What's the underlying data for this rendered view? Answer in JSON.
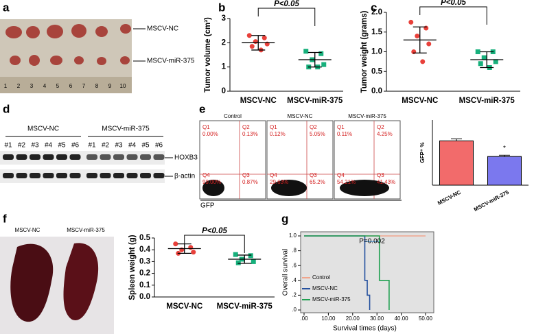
{
  "panel_labels": [
    "a",
    "b",
    "c",
    "d",
    "e",
    "f",
    "g"
  ],
  "photo_a": {
    "labels": [
      "MSCV-NC",
      "MSCV-miR-375"
    ],
    "ruler": [
      "1",
      "2",
      "3",
      "4",
      "5",
      "6",
      "7",
      "8",
      "9",
      "10"
    ]
  },
  "western_blot": {
    "groups": [
      "MSCV-NC",
      "MSCV-miR-375"
    ],
    "lanes": [
      "#1",
      "#2",
      "#3",
      "#4",
      "#5",
      "#6",
      "#1",
      "#2",
      "#3",
      "#4",
      "#5",
      "#6"
    ],
    "bands": [
      "HOXB3",
      "β-actin"
    ]
  },
  "flow": {
    "x_label": "GFP",
    "plots": [
      {
        "title": "Control",
        "quadrants": [
          [
            "Q1",
            "0.00%"
          ],
          [
            "Q2",
            "0.13%"
          ],
          [
            "Q4",
            "99.00%"
          ],
          [
            "Q3",
            "0.87%"
          ]
        ]
      },
      {
        "title": "MSCV-NC",
        "quadrants": [
          [
            "Q1",
            "0.12%"
          ],
          [
            "Q2",
            "5.05%"
          ],
          [
            "Q4",
            "29.63%"
          ],
          [
            "Q3",
            "65.2%"
          ]
        ]
      },
      {
        "title": "MSCV-miR-375",
        "quadrants": [
          [
            "Q1",
            "0.11%"
          ],
          [
            "Q2",
            "4.25%"
          ],
          [
            "Q4",
            "54.21%"
          ],
          [
            "Q3",
            "41.43%"
          ]
        ]
      }
    ]
  },
  "photo_f": {
    "labels": [
      "MSCV-NC",
      "MSCV-miR-375"
    ]
  },
  "chart_data": [
    {
      "type": "dot",
      "y_label": "Tumor volume (cm³)",
      "annotation": "P<0.05",
      "categories": [
        "MSCV-NC",
        "MSCV-miR-375"
      ],
      "colors": [
        "#e8403a",
        "#17b07c"
      ],
      "values": [
        [
          2.3,
          2.2,
          2.05,
          1.95,
          1.85,
          1.7
        ],
        [
          1.65,
          1.55,
          1.3,
          1.1,
          1.0,
          1.0
        ]
      ],
      "mean": [
        2.0,
        1.3
      ],
      "sd": [
        0.3,
        0.3
      ],
      "ylim": [
        0,
        3
      ],
      "yticks": [
        0,
        1,
        2,
        3
      ]
    },
    {
      "type": "dot",
      "y_label": "Tumor weight (grams)",
      "annotation": "P<0.05",
      "categories": [
        "MSCV-NC",
        "MSCV-miR-375"
      ],
      "colors": [
        "#e8403a",
        "#17b07c"
      ],
      "values": [
        [
          1.75,
          1.6,
          1.4,
          1.2,
          1.0,
          0.75
        ],
        [
          1.0,
          1.0,
          0.85,
          0.75,
          0.7,
          0.6
        ]
      ],
      "mean": [
        1.3,
        0.8
      ],
      "sd": [
        0.33,
        0.2
      ],
      "ylim": [
        0,
        2
      ],
      "yticks": [
        {
          "value": 0,
          "label": "0.0"
        },
        0.5,
        {
          "value": 1,
          "label": "1.0"
        },
        1.5,
        {
          "value": 2,
          "label": "2.0"
        }
      ]
    },
    {
      "type": "bar",
      "y_label": "GFP⁺ %",
      "annotation": "*",
      "categories": [
        "MSCV-NC",
        "MSCV-miR-375"
      ],
      "colors": [
        "#f26b6b",
        "#7b78ee"
      ],
      "values": [
        68,
        44
      ],
      "errors": [
        3,
        2
      ],
      "ylim": [
        0,
        100
      ]
    },
    {
      "type": "dot",
      "y_label": "Spleen weight (g)",
      "annotation": "P<0.05",
      "categories": [
        "MSCV-NC",
        "MSCV-miR-375"
      ],
      "colors": [
        "#e8403a",
        "#17b07c"
      ],
      "values": [
        [
          0.45,
          0.42,
          0.4,
          0.38,
          0.37
        ],
        [
          0.36,
          0.35,
          0.32,
          0.3,
          0.29
        ]
      ],
      "mean": [
        0.41,
        0.32
      ],
      "sd": [
        0.04,
        0.035
      ],
      "ylim": [
        0,
        0.5
      ],
      "yticks": [
        {
          "value": 0,
          "label": "0.0"
        },
        0.1,
        0.2,
        0.3,
        0.4,
        0.5
      ]
    },
    {
      "type": "survival",
      "x_label": "Survival times (days)",
      "y_label": "Overall survival",
      "annotation": "P=0.002",
      "legend": "lower left",
      "series": [
        {
          "name": "Control",
          "color": "#f0a58c",
          "x": [
            0,
            50
          ],
          "values": [
            1.0,
            1.0
          ]
        },
        {
          "name": "MSCV-NC",
          "color": "#24509e",
          "x": [
            0,
            25,
            26,
            27
          ],
          "values": [
            1.0,
            0.4,
            0.2,
            0.0
          ]
        },
        {
          "name": "MSCV-miR-375",
          "color": "#1fa050",
          "x": [
            0,
            31,
            35
          ],
          "values": [
            1.0,
            0.4,
            0.0
          ]
        }
      ],
      "xlim": [
        0,
        50
      ],
      "ylim": [
        0,
        1
      ],
      "xticks": [
        {
          "value": 0,
          "label": ".00"
        },
        {
          "value": 10,
          "label": "10.00"
        },
        {
          "value": 20,
          "label": "20.00"
        },
        {
          "value": 30,
          "label": "30.00"
        },
        {
          "value": 40,
          "label": "40.00"
        },
        {
          "value": 50,
          "label": "50.00"
        }
      ],
      "yticks": [
        {
          "value": 0,
          "label": ".0"
        },
        {
          "value": 0.2,
          "label": ".2"
        },
        {
          "value": 0.4,
          "label": ".4"
        },
        {
          "value": 0.6,
          "label": ".6"
        },
        {
          "value": 0.8,
          "label": ".8"
        },
        {
          "value": 1,
          "label": "1.0"
        }
      ]
    }
  ]
}
